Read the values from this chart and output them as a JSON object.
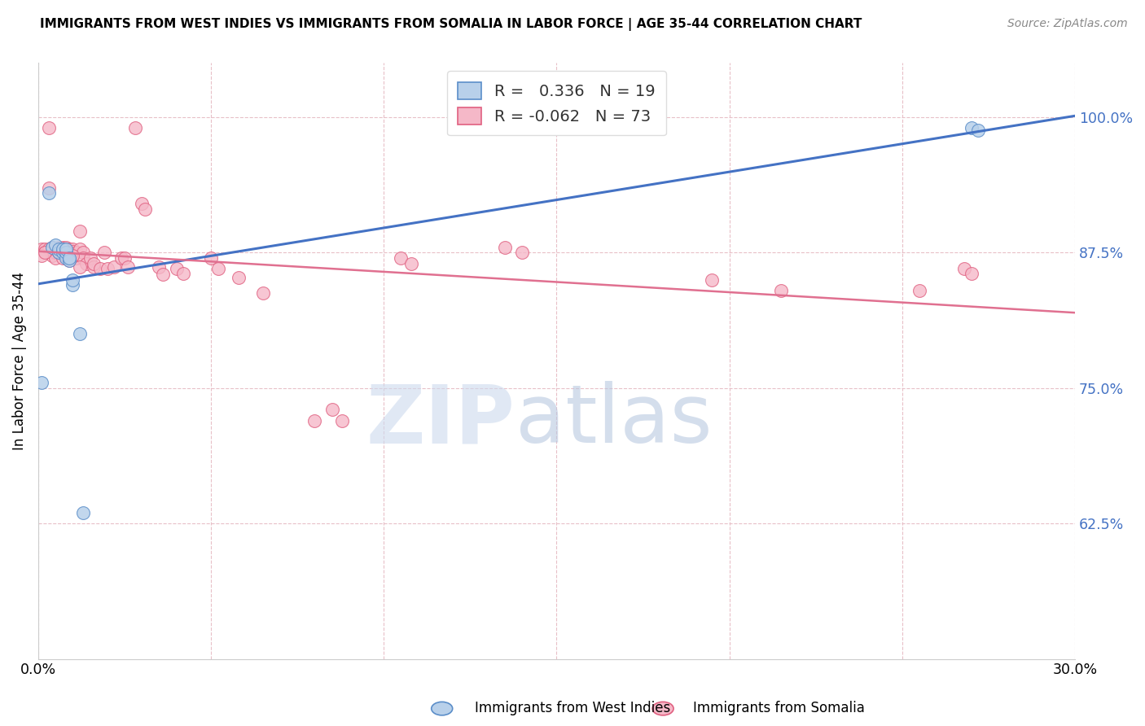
{
  "title": "IMMIGRANTS FROM WEST INDIES VS IMMIGRANTS FROM SOMALIA IN LABOR FORCE | AGE 35-44 CORRELATION CHART",
  "source": "Source: ZipAtlas.com",
  "ylabel": "In Labor Force | Age 35-44",
  "xlim": [
    0.0,
    0.3
  ],
  "ylim": [
    0.5,
    1.05
  ],
  "y_ticks": [
    0.625,
    0.75,
    0.875,
    1.0
  ],
  "y_tick_labels": [
    "62.5%",
    "75.0%",
    "87.5%",
    "100.0%"
  ],
  "x_ticks": [
    0.0,
    0.05,
    0.1,
    0.15,
    0.2,
    0.25,
    0.3
  ],
  "legend_r_blue": "0.336",
  "legend_n_blue": "19",
  "legend_r_pink": "-0.062",
  "legend_n_pink": "73",
  "blue_fill": "#b8d0ea",
  "blue_edge": "#5b8ec9",
  "pink_fill": "#f5b8c8",
  "pink_edge": "#e06080",
  "blue_line": "#4472c4",
  "pink_line": "#e07090",
  "blue_scatter_x": [
    0.001,
    0.003,
    0.004,
    0.005,
    0.006,
    0.006,
    0.007,
    0.007,
    0.008,
    0.008,
    0.008,
    0.009,
    0.009,
    0.01,
    0.01,
    0.012,
    0.013,
    0.27,
    0.272
  ],
  "blue_scatter_y": [
    0.755,
    0.93,
    0.88,
    0.882,
    0.875,
    0.878,
    0.875,
    0.878,
    0.87,
    0.875,
    0.878,
    0.868,
    0.87,
    0.845,
    0.85,
    0.8,
    0.635,
    0.99,
    0.988
  ],
  "pink_scatter_x": [
    0.001,
    0.002,
    0.002,
    0.003,
    0.003,
    0.004,
    0.004,
    0.005,
    0.005,
    0.006,
    0.006,
    0.006,
    0.007,
    0.007,
    0.007,
    0.007,
    0.008,
    0.008,
    0.008,
    0.009,
    0.009,
    0.009,
    0.009,
    0.01,
    0.01,
    0.01,
    0.011,
    0.011,
    0.012,
    0.012,
    0.013,
    0.013,
    0.014,
    0.015,
    0.016,
    0.016,
    0.018,
    0.019,
    0.02,
    0.022,
    0.024,
    0.025,
    0.026,
    0.028,
    0.03,
    0.031,
    0.035,
    0.036,
    0.04,
    0.042,
    0.05,
    0.052,
    0.058,
    0.065,
    0.08,
    0.085,
    0.088,
    0.105,
    0.108,
    0.135,
    0.14,
    0.195,
    0.215,
    0.255,
    0.268,
    0.003,
    0.004,
    0.27,
    0.001,
    0.002,
    0.006,
    0.01,
    0.012
  ],
  "pink_scatter_y": [
    0.878,
    0.878,
    0.875,
    0.99,
    0.935,
    0.875,
    0.872,
    0.875,
    0.87,
    0.88,
    0.876,
    0.875,
    0.88,
    0.878,
    0.875,
    0.87,
    0.88,
    0.878,
    0.872,
    0.878,
    0.875,
    0.872,
    0.868,
    0.878,
    0.876,
    0.872,
    0.875,
    0.87,
    0.895,
    0.878,
    0.875,
    0.87,
    0.865,
    0.87,
    0.862,
    0.865,
    0.86,
    0.875,
    0.86,
    0.862,
    0.87,
    0.87,
    0.862,
    0.99,
    0.92,
    0.915,
    0.862,
    0.855,
    0.86,
    0.856,
    0.87,
    0.86,
    0.852,
    0.838,
    0.72,
    0.73,
    0.72,
    0.87,
    0.865,
    0.88,
    0.875,
    0.85,
    0.84,
    0.84,
    0.86,
    0.878,
    0.88,
    0.856,
    0.872,
    0.875,
    0.878,
    0.872,
    0.862
  ]
}
